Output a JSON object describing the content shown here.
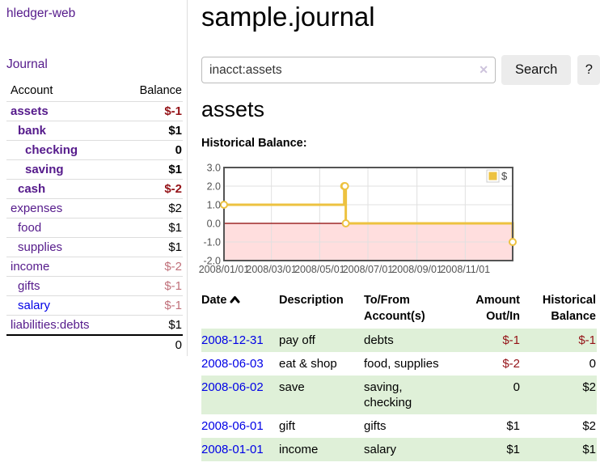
{
  "sidebar": {
    "app_title": "hledger-web",
    "nav": {
      "journal_label": "Journal"
    },
    "accounts": {
      "col_account": "Account",
      "col_balance": "Balance",
      "rows": [
        {
          "name": "assets",
          "indent": 0,
          "bold": true,
          "unvisited": false,
          "balance": "$-1",
          "balance_class": "neg"
        },
        {
          "name": "bank",
          "indent": 1,
          "bold": true,
          "unvisited": false,
          "balance": "$1",
          "balance_class": ""
        },
        {
          "name": "checking",
          "indent": 2,
          "bold": true,
          "unvisited": false,
          "balance": "0",
          "balance_class": ""
        },
        {
          "name": "saving",
          "indent": 2,
          "bold": true,
          "unvisited": false,
          "balance": "$1",
          "balance_class": ""
        },
        {
          "name": "cash",
          "indent": 1,
          "bold": true,
          "unvisited": false,
          "balance": "$-2",
          "balance_class": "neg"
        },
        {
          "name": "expenses",
          "indent": 0,
          "bold": false,
          "unvisited": false,
          "balance": "$2",
          "balance_class": ""
        },
        {
          "name": "food",
          "indent": 1,
          "bold": false,
          "unvisited": false,
          "balance": "$1",
          "balance_class": ""
        },
        {
          "name": "supplies",
          "indent": 1,
          "bold": false,
          "unvisited": false,
          "balance": "$1",
          "balance_class": ""
        },
        {
          "name": "income",
          "indent": 0,
          "bold": false,
          "unvisited": false,
          "balance": "$-2",
          "balance_class": "soft"
        },
        {
          "name": "gifts",
          "indent": 1,
          "bold": false,
          "unvisited": false,
          "balance": "$-1",
          "balance_class": "soft"
        },
        {
          "name": "salary",
          "indent": 1,
          "bold": false,
          "unvisited": true,
          "balance": "$-1",
          "balance_class": "soft"
        },
        {
          "name": "liabilities:debts",
          "indent": 0,
          "bold": false,
          "unvisited": false,
          "balance": "$1",
          "balance_class": ""
        }
      ],
      "total": "0"
    }
  },
  "header": {
    "title": "sample.journal"
  },
  "search": {
    "value": "inacct:assets",
    "clear_icon": "✕",
    "button_label": "Search",
    "help_label": "?"
  },
  "page": {
    "heading": "assets",
    "chart_label": "Historical Balance:"
  },
  "chart_data": {
    "type": "line",
    "title": "Historical Balance:",
    "series": [
      {
        "name": "$",
        "color": "#edc240",
        "steps": true,
        "points": [
          [
            "2008-01-01",
            1
          ],
          [
            "2008-06-01",
            2
          ],
          [
            "2008-06-02",
            2
          ],
          [
            "2008-06-03",
            0
          ],
          [
            "2008-12-31",
            -1
          ]
        ]
      }
    ],
    "x_range": [
      "2008-01-01",
      "2008-12-31"
    ],
    "x_ticks": [
      "2008/01/01",
      "2008/03/01",
      "2008/05/01",
      "2008/07/01",
      "2008/09/01",
      "2008/11/01"
    ],
    "y_ticks": [
      3.0,
      2.0,
      1.0,
      0.0,
      -1.0,
      -2.0
    ],
    "ylim": [
      -2,
      3
    ],
    "grid": true,
    "legend_position": "top-right",
    "negative_region_fill": "rgba(255,0,0,0.13)",
    "zero_line_color": "#8b0000",
    "axis_text_color": "#545454",
    "border_color": "#545454"
  },
  "register": {
    "columns": {
      "date": "Date",
      "description": "Description",
      "accounts": "To/From Account(s)",
      "amount": "Amount Out/In",
      "balance": "Historical Balance"
    },
    "sort": "ascending",
    "rows": [
      {
        "date": "2008-12-31",
        "description": "pay off",
        "accounts": "debts",
        "amount": "$-1",
        "amount_neg": true,
        "balance": "$-1",
        "balance_neg": true
      },
      {
        "date": "2008-06-03",
        "description": "eat & shop",
        "accounts": "food, supplies",
        "amount": "$-2",
        "amount_neg": true,
        "balance": "0",
        "balance_neg": false
      },
      {
        "date": "2008-06-02",
        "description": "save",
        "accounts": "saving, checking",
        "amount": "0",
        "amount_neg": false,
        "balance": "$2",
        "balance_neg": false
      },
      {
        "date": "2008-06-01",
        "description": "gift",
        "accounts": "gifts",
        "amount": "$1",
        "amount_neg": false,
        "balance": "$2",
        "balance_neg": false
      },
      {
        "date": "2008-01-01",
        "description": "income",
        "accounts": "salary",
        "amount": "$1",
        "amount_neg": false,
        "balance": "$1",
        "balance_neg": false
      }
    ]
  },
  "colors": {
    "link_visited": "#551a8b",
    "link_unvisited": "#0000e6",
    "negative_strong": "#941217",
    "negative_soft": "#c0707a",
    "row_stripe_green": "#dff0d8",
    "series_gold": "#edc240"
  }
}
